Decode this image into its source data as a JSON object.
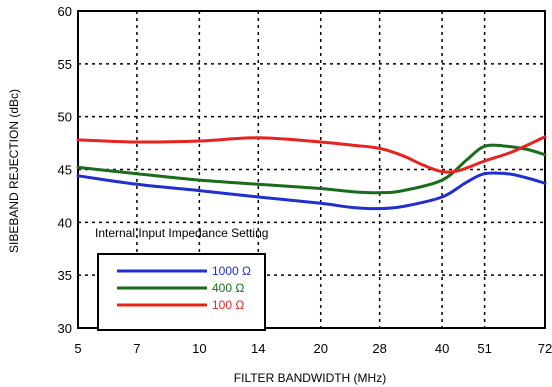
{
  "chart_data": {
    "type": "line",
    "title": "",
    "xlabel": "FILTER BANDWIDTH (MHz)",
    "ylabel": "SIBEBAND REJECTION (dBc)",
    "x_scale": "log",
    "xlim": [
      5,
      72
    ],
    "ylim": [
      30,
      60
    ],
    "x_ticks": [
      5,
      7,
      10,
      14,
      20,
      28,
      40,
      51,
      72
    ],
    "x_tick_labels": [
      "5",
      "7",
      "10",
      "14",
      "20",
      "28",
      "40",
      "51",
      "72"
    ],
    "y_ticks": [
      30,
      35,
      40,
      45,
      50,
      55,
      60
    ],
    "y_tick_labels": [
      "30",
      "35",
      "40",
      "45",
      "50",
      "55",
      "60"
    ],
    "grid": "dotted",
    "legend": {
      "title": "Internal Input Impedance Setting",
      "placement": "bottom-left"
    },
    "series": [
      {
        "name": "1000 Ω",
        "color": "#1f2fd0",
        "x": [
          5,
          7,
          10,
          14,
          20,
          24,
          28,
          32,
          40,
          46,
          51,
          58,
          65,
          72
        ],
        "y": [
          44.4,
          43.6,
          43.0,
          42.4,
          41.8,
          41.4,
          41.3,
          41.5,
          42.4,
          43.8,
          44.6,
          44.6,
          44.2,
          43.7
        ]
      },
      {
        "name": "400 Ω",
        "color": "#1a6b1a",
        "x": [
          5,
          7,
          10,
          14,
          20,
          24,
          28,
          32,
          40,
          46,
          51,
          58,
          65,
          72
        ],
        "y": [
          45.2,
          44.6,
          44.0,
          43.6,
          43.2,
          42.9,
          42.8,
          43.0,
          44.0,
          45.9,
          47.2,
          47.2,
          46.9,
          46.4
        ]
      },
      {
        "name": "100 Ω",
        "color": "#e8231f",
        "x": [
          5,
          7,
          10,
          14,
          20,
          24,
          28,
          32,
          36,
          40,
          44,
          51,
          60,
          72
        ],
        "y": [
          47.8,
          47.6,
          47.7,
          48.0,
          47.6,
          47.3,
          47.0,
          46.3,
          45.4,
          44.8,
          44.9,
          45.8,
          46.7,
          48.1
        ]
      }
    ]
  }
}
